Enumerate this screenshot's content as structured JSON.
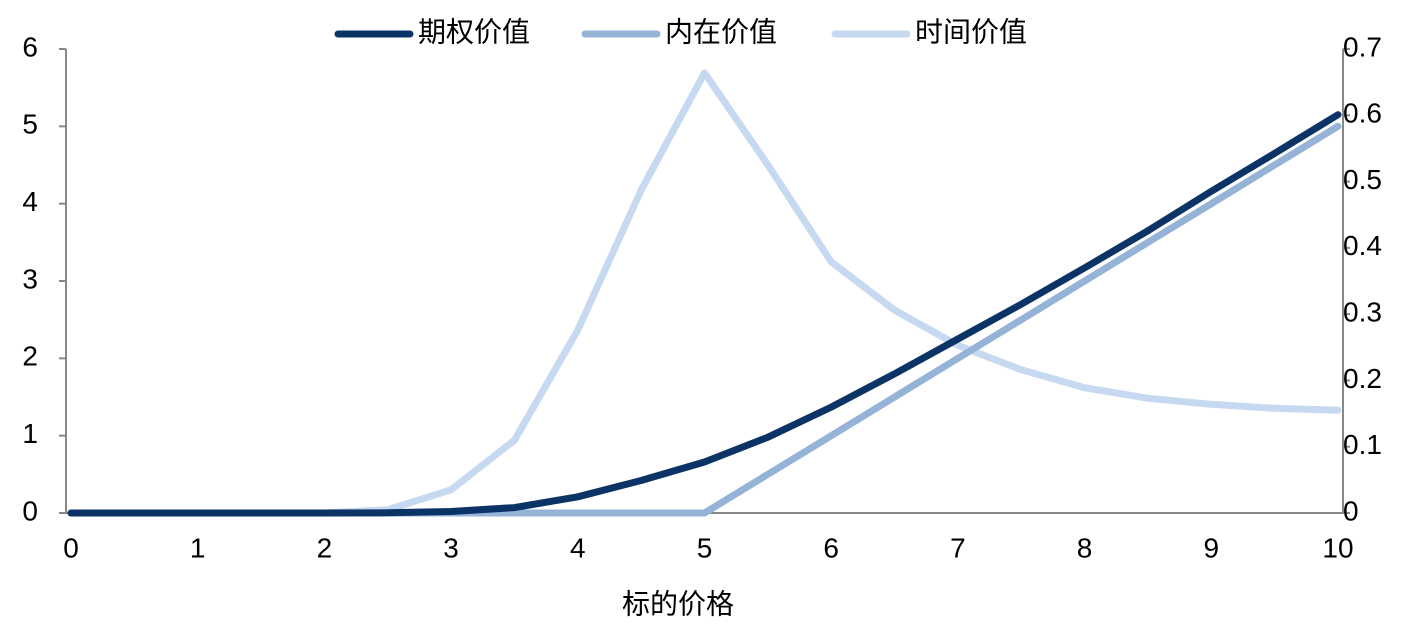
{
  "chart_data": {
    "type": "line",
    "x_label": "标的价格",
    "x": [
      0,
      0.5,
      1,
      1.5,
      2,
      2.5,
      3,
      3.5,
      4,
      4.5,
      5,
      5.5,
      6,
      6.5,
      7,
      7.5,
      8,
      8.5,
      9,
      9.5,
      10
    ],
    "series": [
      {
        "name": "期权价值",
        "color": "#0b3366",
        "values": [
          0,
          0,
          0,
          0,
          0,
          0.002,
          0.02,
          0.07,
          0.21,
          0.42,
          0.66,
          0.98,
          1.37,
          1.8,
          2.25,
          2.7,
          3.17,
          3.65,
          4.16,
          4.65,
          5.15
        ]
      },
      {
        "name": "内在价值",
        "color": "#95b3d7",
        "values": [
          0,
          0,
          0,
          0,
          0,
          0,
          0,
          0,
          0,
          0,
          0,
          0.5,
          1,
          1.5,
          2,
          2.5,
          3,
          3.5,
          4,
          4.5,
          5
        ]
      },
      {
        "name": "时间价值",
        "color": "#c6d9f0",
        "axis": "y2",
        "values": [
          0,
          0,
          0,
          0,
          0,
          0.005,
          0.035,
          0.11,
          0.276,
          0.487,
          0.664,
          0.525,
          0.379,
          0.306,
          0.253,
          0.216,
          0.189,
          0.173,
          0.164,
          0.158,
          0.155
        ]
      }
    ],
    "xlim": [
      0,
      10
    ],
    "xticks": [
      0,
      1,
      2,
      3,
      4,
      5,
      6,
      7,
      8,
      9,
      10
    ],
    "ylim": [
      0,
      6
    ],
    "yticks": [
      0,
      1,
      2,
      3,
      4,
      5,
      6
    ],
    "y2lim": [
      0,
      0.7
    ],
    "y2ticks": [
      0,
      0.1,
      0.2,
      0.3,
      0.4,
      0.5,
      0.6,
      0.7
    ]
  }
}
